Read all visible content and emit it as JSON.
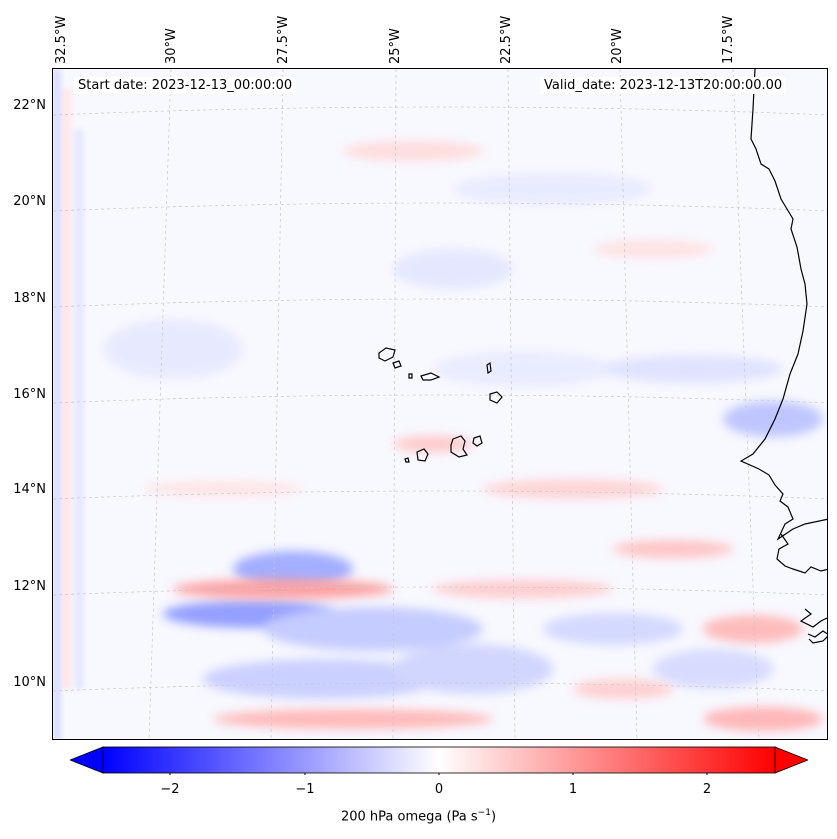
{
  "header": {
    "start_date": "Start date: 2023-12-13_00:00:00",
    "valid_date": "Valid_date: 2023-12-13T20:00:00.00"
  },
  "lon_ticks": [
    "32.5°W",
    "30°W",
    "27.5°W",
    "25°W",
    "22.5°W",
    "20°W",
    "17.5°W"
  ],
  "lat_ticks": [
    "22°N",
    "20°N",
    "18°N",
    "16°N",
    "14°N",
    "12°N",
    "10°N"
  ],
  "colorbar": {
    "ticks": [
      "−2",
      "−1",
      "0",
      "1",
      "2"
    ],
    "label_main": "200 hPa omega (Pa s",
    "label_sup": "−1",
    "label_end": ")",
    "min": -2.6,
    "max": 2.6,
    "colors": {
      "neg": "#0000ff",
      "zero": "#ffffff",
      "pos": "#ff0000"
    },
    "extend": "both"
  },
  "map": {
    "projection": "lambert-conformal",
    "gridlines": true,
    "coastlines": "west-africa-and-cape-verde",
    "field": "omega-200hPa"
  }
}
